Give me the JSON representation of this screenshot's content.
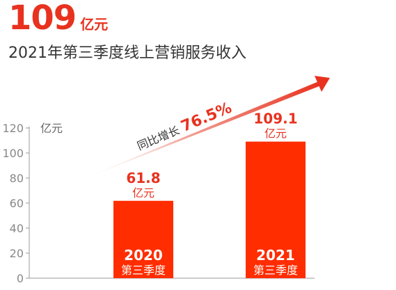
{
  "header": {
    "value": "109",
    "unit": "亿元",
    "subtitle": "2021年第三季度线上营销服务收入"
  },
  "growth": {
    "label": "同比增长",
    "value": "76.5%"
  },
  "colors": {
    "accent": "#e8321f",
    "bar": "#ff2d00",
    "text": "#333333",
    "axis": "#999999"
  },
  "chart_data": {
    "type": "bar",
    "categories": [
      "2020",
      "2021"
    ],
    "category_sublabels": [
      "第三季度",
      "第三季度"
    ],
    "values": [
      61.8,
      109.1
    ],
    "value_labels": [
      "61.8",
      "109.1"
    ],
    "value_unit": "亿元",
    "ylabel": "亿元",
    "ylim": [
      0,
      120
    ],
    "yticks": [
      0,
      20,
      40,
      60,
      80,
      100,
      120
    ],
    "grid": false,
    "legend": "none"
  }
}
